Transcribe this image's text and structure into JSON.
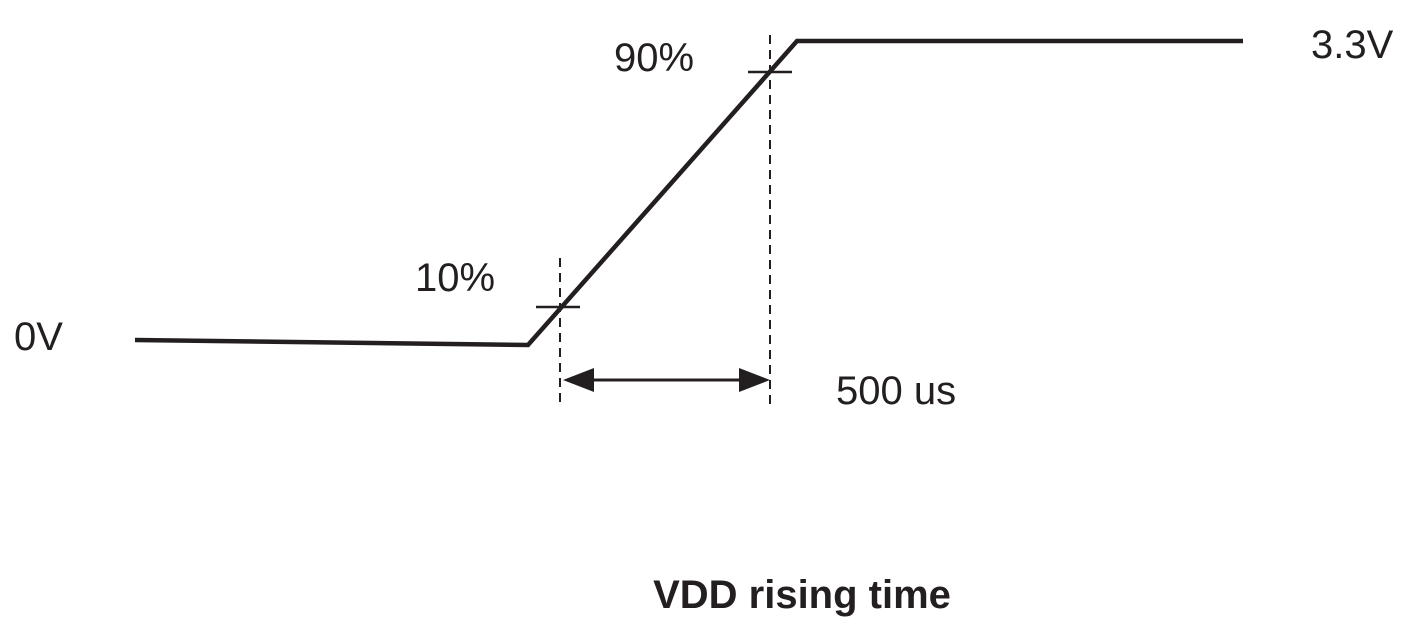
{
  "diagram": {
    "title": "VDD rising time",
    "labels": {
      "low_level": "0V",
      "high_level": "3.3V",
      "low_threshold": "10%",
      "high_threshold": "90%",
      "rise_time": "500 us"
    }
  }
}
